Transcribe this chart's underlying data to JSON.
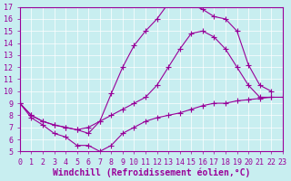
{
  "background_color": "#c8eef0",
  "line_color": "#990099",
  "grid_color": "#ffffff",
  "xlabel": "Windchill (Refroidissement éolien,°C)",
  "xlim": [
    0,
    23
  ],
  "ylim": [
    5,
    17
  ],
  "yticks": [
    5,
    6,
    7,
    8,
    9,
    10,
    11,
    12,
    13,
    14,
    15,
    16,
    17
  ],
  "xticks": [
    0,
    1,
    2,
    3,
    4,
    5,
    6,
    7,
    8,
    9,
    10,
    11,
    12,
    13,
    14,
    15,
    16,
    17,
    18,
    19,
    20,
    21,
    22,
    23
  ],
  "max_x": [
    0,
    1,
    2,
    3,
    4,
    5,
    6,
    7,
    8,
    9,
    10,
    11,
    12,
    13,
    14,
    15,
    16,
    17,
    18,
    19,
    20,
    21,
    22,
    23
  ],
  "max_y": [
    9.0,
    8.0,
    7.5,
    7.2,
    7.0,
    6.8,
    6.5,
    7.5,
    9.8,
    12.0,
    13.8,
    15.0,
    16.0,
    17.3,
    17.3,
    17.2,
    16.8,
    16.2,
    16.0,
    15.0,
    12.2,
    10.5,
    10.0,
    null
  ],
  "mean_x": [
    0,
    1,
    2,
    3,
    4,
    5,
    6,
    7,
    8,
    9,
    10,
    11,
    12,
    13,
    14,
    15,
    16,
    17,
    18,
    19,
    20,
    21,
    22,
    23
  ],
  "mean_y": [
    9.0,
    8.0,
    7.5,
    7.2,
    7.0,
    6.8,
    7.0,
    7.5,
    8.0,
    8.5,
    9.0,
    9.5,
    10.5,
    12.0,
    13.5,
    14.8,
    15.0,
    14.5,
    13.5,
    12.0,
    10.5,
    9.5,
    9.5,
    null
  ],
  "min_x": [
    0,
    1,
    2,
    3,
    4,
    5,
    6,
    7,
    8,
    9,
    10,
    11,
    12,
    13,
    14,
    15,
    16,
    17,
    18,
    19,
    20,
    21,
    22,
    23
  ],
  "min_y": [
    9.0,
    7.8,
    7.2,
    6.5,
    6.2,
    5.5,
    5.5,
    5.0,
    5.5,
    6.5,
    7.0,
    7.5,
    7.8,
    8.0,
    8.2,
    8.5,
    8.8,
    9.0,
    9.0,
    9.2,
    9.3,
    9.4,
    9.5,
    9.5
  ],
  "marker_size": 2.5,
  "font_family": "monospace",
  "label_fontsize": 7,
  "tick_fontsize": 6
}
